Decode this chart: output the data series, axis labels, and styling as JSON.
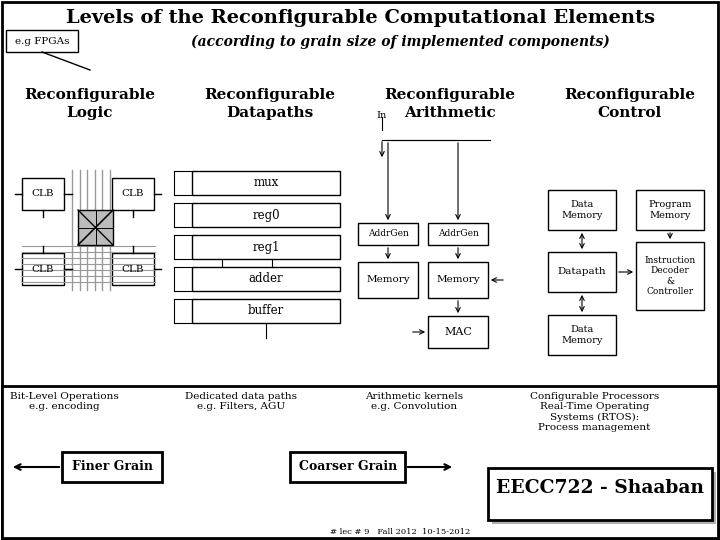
{
  "title": "Levels of the Reconfigurable Computational Elements",
  "subtitle": "(according to grain size of implemented components)",
  "subtitle_prefix": "e.g FPGAs",
  "col_headers": [
    [
      "Reconfigurable",
      "Logic"
    ],
    [
      "Reconfigurable",
      "Datapaths"
    ],
    [
      "Reconfigurable",
      "Arithmetic"
    ],
    [
      "Reconfigurable",
      "Control"
    ]
  ],
  "footer": "EECC722 - Shaaban",
  "footer_small": "# lec # 9   Fall 2012  10-15-2012",
  "bg_color": "#d8d8d8",
  "white": "#ffffff",
  "black": "#000000",
  "gray": "#b0b0b0"
}
